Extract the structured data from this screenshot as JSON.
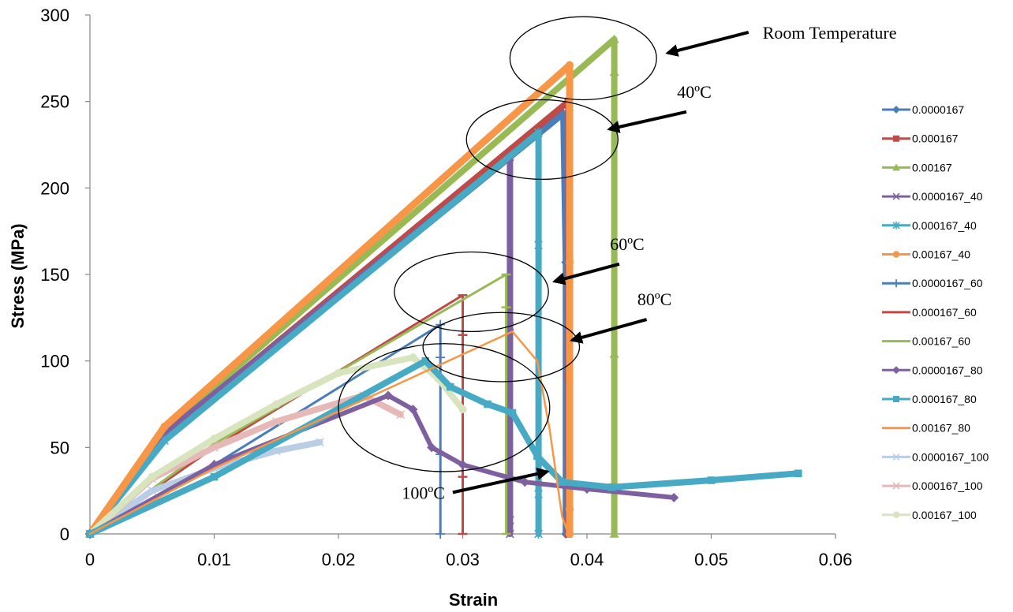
{
  "chart_data": {
    "type": "line",
    "title": "",
    "xlabel": "Strain",
    "ylabel": "Stress (MPa)",
    "xlim": [
      0,
      0.06
    ],
    "ylim": [
      0,
      300
    ],
    "xticks": [
      "0",
      "0.01",
      "0.02",
      "0.03",
      "0.04",
      "0.05",
      "0.06"
    ],
    "yticks": [
      "0",
      "50",
      "100",
      "150",
      "200",
      "250",
      "300"
    ],
    "grid": false,
    "legend_position": "right",
    "series": [
      {
        "name": "0.0000167",
        "color": "#4a7ebb",
        "marker": "diamond",
        "x": [
          0,
          0.006,
          0.0381,
          0.0383,
          0.0383
        ],
        "y": [
          0,
          55,
          243,
          157,
          0
        ]
      },
      {
        "name": "0.000167",
        "color": "#be4b48",
        "marker": "square",
        "x": [
          0,
          0.006,
          0.0385,
          0.0385,
          0.0385
        ],
        "y": [
          0,
          57,
          250,
          91,
          0
        ]
      },
      {
        "name": "0.00167",
        "color": "#98b954",
        "marker": "triangle",
        "x": [
          0,
          0.006,
          0.0422,
          0.0422,
          0.0422,
          0.0422
        ],
        "y": [
          0,
          60,
          286,
          267,
          104,
          0
        ]
      },
      {
        "name": "0.0000167_40",
        "color": "#7d60a0",
        "marker": "x",
        "x": [
          0,
          0.006,
          0.0338,
          0.0338,
          0.0338,
          0.0338
        ],
        "y": [
          0,
          58,
          218,
          120,
          8,
          0
        ]
      },
      {
        "name": "0.000167_40",
        "color": "#46aac5",
        "marker": "star",
        "x": [
          0,
          0.006,
          0.0361,
          0.0361,
          0.0361,
          0.0361
        ],
        "y": [
          0,
          54,
          232,
          167,
          23,
          0
        ]
      },
      {
        "name": "0.00167_40",
        "color": "#f79646",
        "marker": "circle",
        "x": [
          0,
          0.006,
          0.0386,
          0.0386,
          0.0386,
          0.0386
        ],
        "y": [
          0,
          62,
          271,
          157,
          14,
          0
        ]
      },
      {
        "name": "0.0000167_60",
        "color": "#4a7ebb",
        "marker": "plus",
        "x": [
          0,
          0.01,
          0.0282,
          0.0282,
          0.0282,
          0.0282
        ],
        "y": [
          0,
          40,
          121,
          102,
          46,
          0
        ]
      },
      {
        "name": "0.000167_60",
        "color": "#be4b48",
        "marker": "dash",
        "x": [
          0,
          0.01,
          0.03,
          0.03,
          0.03,
          0.03
        ],
        "y": [
          0,
          50,
          138,
          115,
          33,
          0
        ]
      },
      {
        "name": "0.00167_60",
        "color": "#98b954",
        "marker": "dash",
        "x": [
          0,
          0.01,
          0.0335,
          0.0335,
          0.0335
        ],
        "y": [
          0,
          52,
          150,
          131,
          0
        ]
      },
      {
        "name": "0.0000167_80",
        "color": "#7d60a0",
        "marker": "diamond",
        "x": [
          0,
          0.01,
          0.024,
          0.026,
          0.0275,
          0.03,
          0.035,
          0.04,
          0.047
        ],
        "y": [
          0,
          40,
          80,
          72,
          50,
          40,
          30,
          26,
          21
        ]
      },
      {
        "name": "0.000167_80",
        "color": "#46aac5",
        "marker": "square",
        "x": [
          0,
          0.01,
          0.027,
          0.029,
          0.032,
          0.034,
          0.036,
          0.038,
          0.042,
          0.05,
          0.057
        ],
        "y": [
          0,
          33,
          100,
          85,
          75,
          70,
          45,
          30,
          27,
          31,
          35
        ]
      },
      {
        "name": "0.00167_80",
        "color": "#f79646",
        "marker": "line",
        "x": [
          0,
          0.01,
          0.034,
          0.036,
          0.037,
          0.038,
          0.0385
        ],
        "y": [
          0,
          38,
          117,
          100,
          60,
          10,
          0
        ]
      },
      {
        "name": "0.0000167_100",
        "color": "#b9cde5",
        "marker": "x",
        "x": [
          0,
          0.005,
          0.01,
          0.015,
          0.0185
        ],
        "y": [
          0,
          25,
          38,
          48,
          53
        ]
      },
      {
        "name": "0.000167_100",
        "color": "#e6b9b8",
        "marker": "x",
        "x": [
          0,
          0.005,
          0.01,
          0.015,
          0.022,
          0.025
        ],
        "y": [
          0,
          32,
          50,
          65,
          80,
          69
        ]
      },
      {
        "name": "0.00167_100",
        "color": "#d7e4bd",
        "marker": "circle",
        "x": [
          0,
          0.005,
          0.01,
          0.015,
          0.02,
          0.026,
          0.028,
          0.03
        ],
        "y": [
          0,
          33,
          55,
          75,
          93,
          102,
          90,
          72
        ]
      }
    ],
    "annotations": [
      {
        "text": "Room Temperature",
        "ellipse": {
          "cx": 0.0397,
          "cy": 275,
          "rx": 0.0059,
          "ry": 24
        },
        "arrow_tip": [
          0.0465,
          278
        ],
        "arrow_tail": [
          0.053,
          290
        ]
      },
      {
        "text": "40ºC",
        "ellipse": {
          "cx": 0.0364,
          "cy": 228,
          "rx": 0.0061,
          "ry": 23
        },
        "arrow_tip": [
          0.0418,
          234
        ],
        "arrow_tail": [
          0.048,
          244
        ]
      },
      {
        "text": "60ºC",
        "ellipse": {
          "cx": 0.0307,
          "cy": 140,
          "rx": 0.0062,
          "ry": 23
        },
        "arrow_tip": [
          0.0374,
          146
        ],
        "arrow_tail": [
          0.0426,
          156
        ]
      },
      {
        "text": "80ºC",
        "ellipse": {
          "cx": 0.0331,
          "cy": 108,
          "rx": 0.0063,
          "ry": 20
        },
        "arrow_tip": [
          0.0388,
          112
        ],
        "arrow_tail": [
          0.0448,
          124
        ]
      },
      {
        "text": "100ºC",
        "ellipse": {
          "cx": 0.0285,
          "cy": 73,
          "rx": 0.0085,
          "ry": 37
        },
        "arrow_tip": [
          0.0368,
          36
        ],
        "arrow_tail": [
          0.0292,
          24
        ]
      }
    ]
  }
}
